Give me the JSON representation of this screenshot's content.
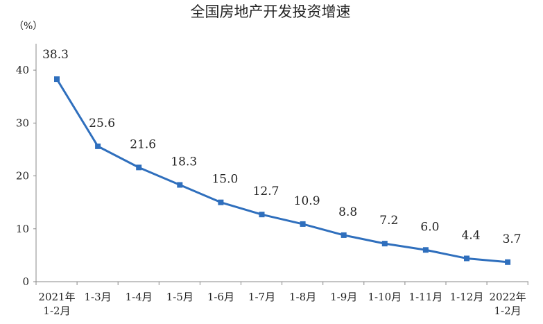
{
  "chart_data": {
    "type": "line",
    "title": "全国房地产开发投资增速",
    "unit": "（%）",
    "categories": [
      [
        "2021年",
        "1-2月"
      ],
      [
        "1-3月"
      ],
      [
        "1-4月"
      ],
      [
        "1-5月"
      ],
      [
        "1-6月"
      ],
      [
        "1-7月"
      ],
      [
        "1-8月"
      ],
      [
        "1-9月"
      ],
      [
        "1-10月"
      ],
      [
        "1-11月"
      ],
      [
        "1-12月"
      ],
      [
        "2022年",
        "1-2月"
      ]
    ],
    "values": [
      38.3,
      25.6,
      21.6,
      18.3,
      15.0,
      12.7,
      10.9,
      8.8,
      7.2,
      6.0,
      4.4,
      3.7
    ],
    "value_labels": [
      "38.3",
      "25.6",
      "21.6",
      "18.3",
      "15.0",
      "12.7",
      "10.9",
      "8.8",
      "7.2",
      "6.0",
      "4.4",
      "3.7"
    ],
    "yticks": [
      0,
      10,
      20,
      30,
      40
    ],
    "ylim": [
      0,
      45
    ],
    "grid": false,
    "legend": "none",
    "colors": {
      "series": "#2f6fbd",
      "axis": "#888888",
      "text": "#222222"
    }
  }
}
